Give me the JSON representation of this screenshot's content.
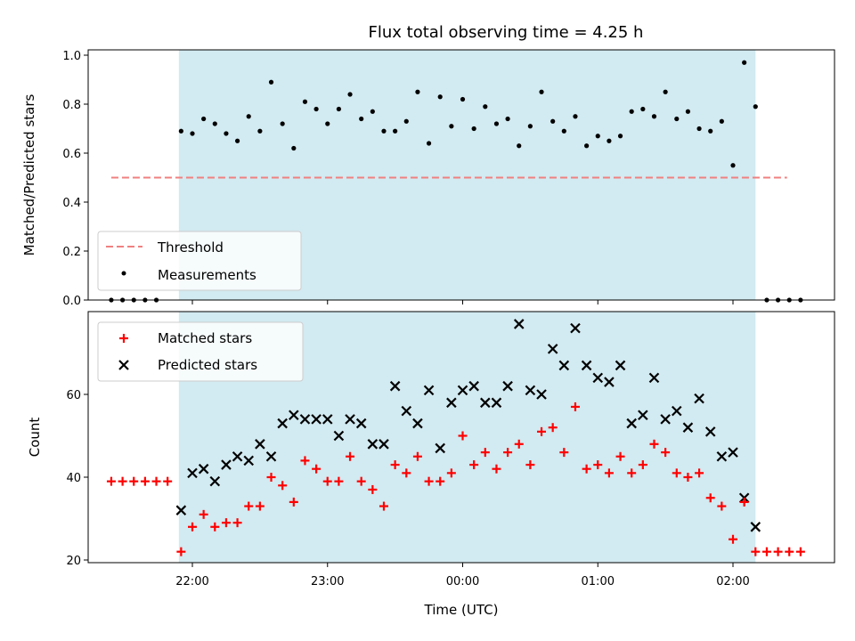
{
  "chart_data": [
    {
      "type": "scatter",
      "title": "Flux total observing time = 4.25 h",
      "ylabel": "Matched/Predicted stars",
      "xlabel": "",
      "ylim": [
        0,
        1.0
      ],
      "yticks": [
        "0.0",
        "0.2",
        "0.4",
        "0.6",
        "0.8",
        "1.0"
      ],
      "grid": false,
      "legend_position": "bottom-left",
      "shaded_interval": [
        "21:54",
        "02:10"
      ],
      "threshold": {
        "name": "Threshold",
        "value": 0.5,
        "x_range": [
          "21:24",
          "02:24"
        ],
        "color": "#f08080",
        "style": "dashed"
      },
      "series": [
        {
          "name": "Measurements",
          "color": "#000000",
          "marker": "dot",
          "points": [
            [
              "21:24",
              0.0
            ],
            [
              "21:29",
              0.0
            ],
            [
              "21:34",
              0.0
            ],
            [
              "21:39",
              0.0
            ],
            [
              "21:44",
              0.0
            ],
            [
              "21:55",
              0.69
            ],
            [
              "22:00",
              0.68
            ],
            [
              "22:05",
              0.74
            ],
            [
              "22:10",
              0.72
            ],
            [
              "22:15",
              0.68
            ],
            [
              "22:20",
              0.65
            ],
            [
              "22:25",
              0.75
            ],
            [
              "22:30",
              0.69
            ],
            [
              "22:35",
              0.89
            ],
            [
              "22:40",
              0.72
            ],
            [
              "22:45",
              0.62
            ],
            [
              "22:50",
              0.81
            ],
            [
              "22:55",
              0.78
            ],
            [
              "23:00",
              0.72
            ],
            [
              "23:05",
              0.78
            ],
            [
              "23:10",
              0.84
            ],
            [
              "23:15",
              0.74
            ],
            [
              "23:20",
              0.77
            ],
            [
              "23:25",
              0.69
            ],
            [
              "23:30",
              0.69
            ],
            [
              "23:35",
              0.73
            ],
            [
              "23:40",
              0.85
            ],
            [
              "23:45",
              0.64
            ],
            [
              "23:50",
              0.83
            ],
            [
              "23:55",
              0.71
            ],
            [
              "00:00",
              0.82
            ],
            [
              "00:05",
              0.7
            ],
            [
              "00:10",
              0.79
            ],
            [
              "00:15",
              0.72
            ],
            [
              "00:20",
              0.74
            ],
            [
              "00:25",
              0.63
            ],
            [
              "00:30",
              0.71
            ],
            [
              "00:35",
              0.85
            ],
            [
              "00:40",
              0.73
            ],
            [
              "00:45",
              0.69
            ],
            [
              "00:50",
              0.75
            ],
            [
              "00:55",
              0.63
            ],
            [
              "01:00",
              0.67
            ],
            [
              "01:05",
              0.65
            ],
            [
              "01:10",
              0.67
            ],
            [
              "01:15",
              0.77
            ],
            [
              "01:20",
              0.78
            ],
            [
              "01:25",
              0.75
            ],
            [
              "01:30",
              0.85
            ],
            [
              "01:35",
              0.74
            ],
            [
              "01:40",
              0.77
            ],
            [
              "01:45",
              0.7
            ],
            [
              "01:50",
              0.69
            ],
            [
              "01:55",
              0.73
            ],
            [
              "02:00",
              0.55
            ],
            [
              "02:05",
              0.97
            ],
            [
              "02:10",
              0.79
            ],
            [
              "02:15",
              0.0
            ],
            [
              "02:20",
              0.0
            ],
            [
              "02:25",
              0.0
            ],
            [
              "02:30",
              0.0
            ]
          ]
        }
      ]
    },
    {
      "type": "scatter",
      "title": "",
      "ylabel": "Count",
      "xlabel": "Time (UTC)",
      "ylim": [
        19.5,
        78.5
      ],
      "yticks": [
        "20",
        "40",
        "60"
      ],
      "xticks": [
        "22:00",
        "23:00",
        "00:00",
        "01:00",
        "02:00"
      ],
      "grid": false,
      "legend_position": "top-left",
      "shaded_interval": [
        "21:54",
        "02:10"
      ],
      "series": [
        {
          "name": "Matched stars",
          "color": "#ff0000",
          "marker": "plus",
          "points": [
            [
              "21:24",
              39
            ],
            [
              "21:29",
              39
            ],
            [
              "21:34",
              39
            ],
            [
              "21:39",
              39
            ],
            [
              "21:44",
              39
            ],
            [
              "21:49",
              39
            ],
            [
              "21:55",
              22
            ],
            [
              "22:00",
              28
            ],
            [
              "22:05",
              31
            ],
            [
              "22:10",
              28
            ],
            [
              "22:15",
              29
            ],
            [
              "22:20",
              29
            ],
            [
              "22:25",
              33
            ],
            [
              "22:30",
              33
            ],
            [
              "22:35",
              40
            ],
            [
              "22:40",
              38
            ],
            [
              "22:45",
              34
            ],
            [
              "22:50",
              44
            ],
            [
              "22:55",
              42
            ],
            [
              "23:00",
              39
            ],
            [
              "23:05",
              39
            ],
            [
              "23:10",
              45
            ],
            [
              "23:15",
              39
            ],
            [
              "23:20",
              37
            ],
            [
              "23:25",
              33
            ],
            [
              "23:30",
              43
            ],
            [
              "23:35",
              41
            ],
            [
              "23:40",
              45
            ],
            [
              "23:45",
              39
            ],
            [
              "23:50",
              39
            ],
            [
              "23:55",
              41
            ],
            [
              "00:00",
              50
            ],
            [
              "00:05",
              43
            ],
            [
              "00:10",
              46
            ],
            [
              "00:15",
              42
            ],
            [
              "00:20",
              46
            ],
            [
              "00:25",
              48
            ],
            [
              "00:30",
              43
            ],
            [
              "00:35",
              51
            ],
            [
              "00:40",
              52
            ],
            [
              "00:45",
              46
            ],
            [
              "00:50",
              57
            ],
            [
              "00:55",
              42
            ],
            [
              "01:00",
              43
            ],
            [
              "01:05",
              41
            ],
            [
              "01:10",
              45
            ],
            [
              "01:15",
              41
            ],
            [
              "01:20",
              43
            ],
            [
              "01:25",
              48
            ],
            [
              "01:30",
              46
            ],
            [
              "01:35",
              41
            ],
            [
              "01:40",
              40
            ],
            [
              "01:45",
              41
            ],
            [
              "01:50",
              35
            ],
            [
              "01:55",
              33
            ],
            [
              "02:00",
              25
            ],
            [
              "02:05",
              34
            ],
            [
              "02:10",
              22
            ],
            [
              "02:15",
              22
            ],
            [
              "02:20",
              22
            ],
            [
              "02:25",
              22
            ],
            [
              "02:30",
              22
            ]
          ]
        },
        {
          "name": "Predicted stars",
          "color": "#000000",
          "marker": "x",
          "points": [
            [
              "21:55",
              32
            ],
            [
              "22:00",
              41
            ],
            [
              "22:05",
              42
            ],
            [
              "22:10",
              39
            ],
            [
              "22:15",
              43
            ],
            [
              "22:20",
              45
            ],
            [
              "22:25",
              44
            ],
            [
              "22:30",
              48
            ],
            [
              "22:35",
              45
            ],
            [
              "22:40",
              53
            ],
            [
              "22:45",
              55
            ],
            [
              "22:50",
              54
            ],
            [
              "22:55",
              54
            ],
            [
              "23:00",
              54
            ],
            [
              "23:05",
              50
            ],
            [
              "23:10",
              54
            ],
            [
              "23:15",
              53
            ],
            [
              "23:20",
              48
            ],
            [
              "23:25",
              48
            ],
            [
              "23:30",
              62
            ],
            [
              "23:35",
              56
            ],
            [
              "23:40",
              53
            ],
            [
              "23:45",
              61
            ],
            [
              "23:50",
              47
            ],
            [
              "23:55",
              58
            ],
            [
              "00:00",
              61
            ],
            [
              "00:05",
              62
            ],
            [
              "00:10",
              58
            ],
            [
              "00:15",
              58
            ],
            [
              "00:20",
              62
            ],
            [
              "00:25",
              77
            ],
            [
              "00:30",
              61
            ],
            [
              "00:35",
              60
            ],
            [
              "00:40",
              71
            ],
            [
              "00:45",
              67
            ],
            [
              "00:50",
              76
            ],
            [
              "00:55",
              67
            ],
            [
              "01:00",
              64
            ],
            [
              "01:05",
              63
            ],
            [
              "01:10",
              67
            ],
            [
              "01:15",
              53
            ],
            [
              "01:20",
              55
            ],
            [
              "01:25",
              64
            ],
            [
              "01:30",
              54
            ],
            [
              "01:35",
              56
            ],
            [
              "01:40",
              52
            ],
            [
              "01:45",
              59
            ],
            [
              "01:50",
              51
            ],
            [
              "01:55",
              45
            ],
            [
              "02:00",
              46
            ],
            [
              "02:05",
              35
            ],
            [
              "02:10",
              28
            ]
          ]
        }
      ]
    }
  ]
}
